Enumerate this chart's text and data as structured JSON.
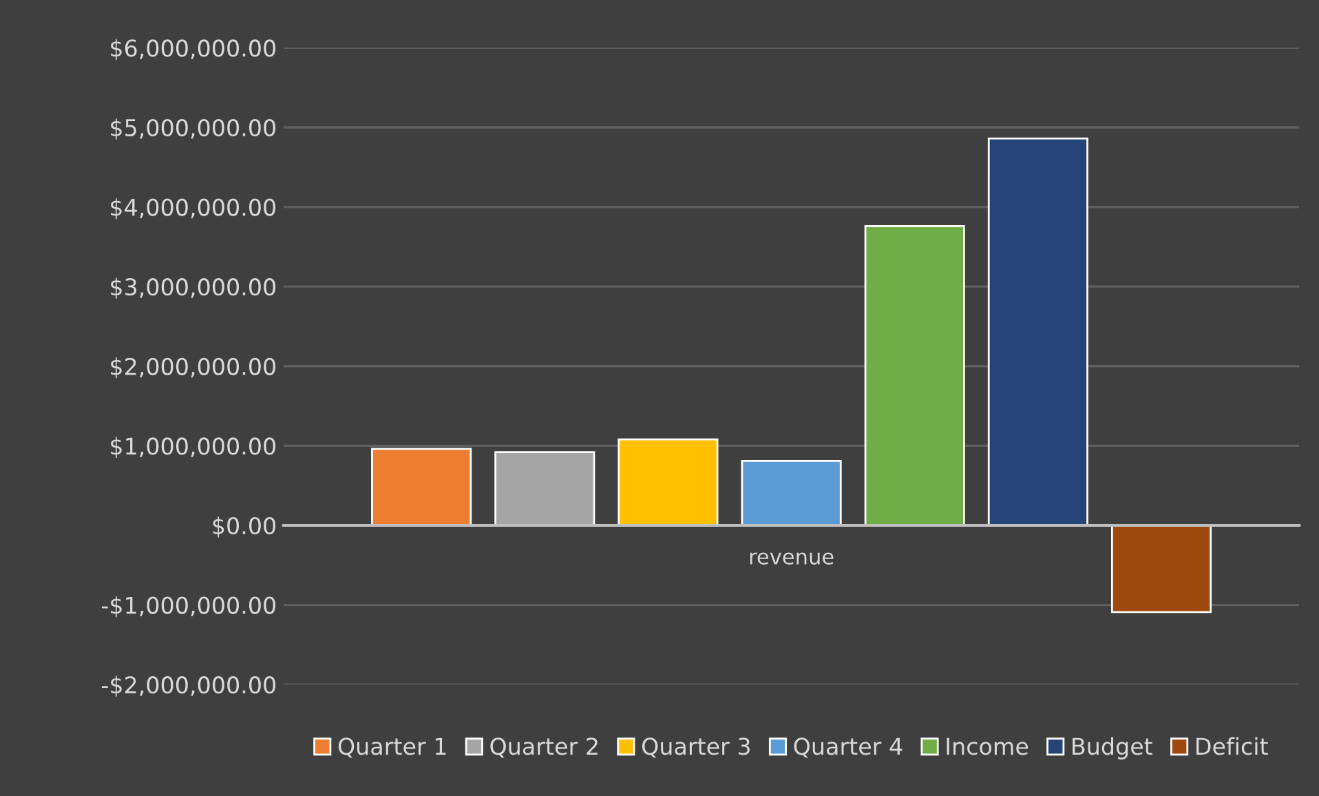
{
  "chart_data": {
    "type": "bar",
    "categories": [
      "revenue"
    ],
    "series": [
      {
        "name": "Quarter 1",
        "color": "#ed7d31",
        "values": [
          960000
        ]
      },
      {
        "name": "Quarter 2",
        "color": "#a5a5a5",
        "values": [
          920000
        ]
      },
      {
        "name": "Quarter 3",
        "color": "#ffc000",
        "values": [
          1080000
        ]
      },
      {
        "name": "Quarter 4",
        "color": "#5b9bd5",
        "values": [
          810000
        ]
      },
      {
        "name": "Income",
        "color": "#70ad47",
        "values": [
          3760000
        ]
      },
      {
        "name": "Budget",
        "color": "#264478",
        "values": [
          4860000
        ]
      },
      {
        "name": "Deficit",
        "color": "#9e480e",
        "values": [
          -1090000
        ]
      }
    ],
    "ylim": [
      -2000000,
      6000000
    ],
    "yticks": [
      {
        "value": -2000000,
        "label": "-$2,000,000.00"
      },
      {
        "value": -1000000,
        "label": "-$1,000,000.00"
      },
      {
        "value": 0,
        "label": "$0.00"
      },
      {
        "value": 1000000,
        "label": "$1,000,000.00"
      },
      {
        "value": 2000000,
        "label": "$2,000,000.00"
      },
      {
        "value": 3000000,
        "label": "$3,000,000.00"
      },
      {
        "value": 4000000,
        "label": "$4,000,000.00"
      },
      {
        "value": 5000000,
        "label": "$5,000,000.00"
      },
      {
        "value": 6000000,
        "label": "$6,000,000.00"
      }
    ],
    "grid": "y",
    "legend": "bottom"
  }
}
